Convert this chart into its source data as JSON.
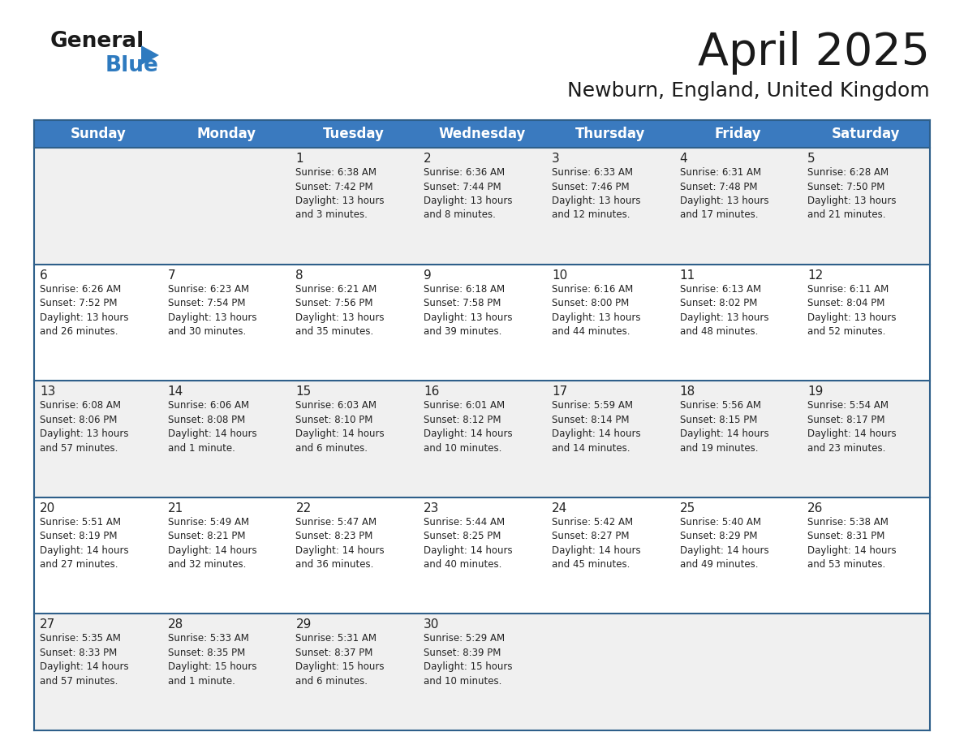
{
  "title": "April 2025",
  "subtitle": "Newburn, England, United Kingdom",
  "header_bg": "#3a7abf",
  "header_text": "#ffffff",
  "row_bg_odd": "#f0f0f0",
  "row_bg_even": "#ffffff",
  "separator_color": "#2e5f8a",
  "day_names": [
    "Sunday",
    "Monday",
    "Tuesday",
    "Wednesday",
    "Thursday",
    "Friday",
    "Saturday"
  ],
  "cell_text_color": "#222222",
  "day_number_color": "#222222",
  "calendar": [
    [
      {
        "day": "",
        "info": ""
      },
      {
        "day": "",
        "info": ""
      },
      {
        "day": "1",
        "info": "Sunrise: 6:38 AM\nSunset: 7:42 PM\nDaylight: 13 hours\nand 3 minutes."
      },
      {
        "day": "2",
        "info": "Sunrise: 6:36 AM\nSunset: 7:44 PM\nDaylight: 13 hours\nand 8 minutes."
      },
      {
        "day": "3",
        "info": "Sunrise: 6:33 AM\nSunset: 7:46 PM\nDaylight: 13 hours\nand 12 minutes."
      },
      {
        "day": "4",
        "info": "Sunrise: 6:31 AM\nSunset: 7:48 PM\nDaylight: 13 hours\nand 17 minutes."
      },
      {
        "day": "5",
        "info": "Sunrise: 6:28 AM\nSunset: 7:50 PM\nDaylight: 13 hours\nand 21 minutes."
      }
    ],
    [
      {
        "day": "6",
        "info": "Sunrise: 6:26 AM\nSunset: 7:52 PM\nDaylight: 13 hours\nand 26 minutes."
      },
      {
        "day": "7",
        "info": "Sunrise: 6:23 AM\nSunset: 7:54 PM\nDaylight: 13 hours\nand 30 minutes."
      },
      {
        "day": "8",
        "info": "Sunrise: 6:21 AM\nSunset: 7:56 PM\nDaylight: 13 hours\nand 35 minutes."
      },
      {
        "day": "9",
        "info": "Sunrise: 6:18 AM\nSunset: 7:58 PM\nDaylight: 13 hours\nand 39 minutes."
      },
      {
        "day": "10",
        "info": "Sunrise: 6:16 AM\nSunset: 8:00 PM\nDaylight: 13 hours\nand 44 minutes."
      },
      {
        "day": "11",
        "info": "Sunrise: 6:13 AM\nSunset: 8:02 PM\nDaylight: 13 hours\nand 48 minutes."
      },
      {
        "day": "12",
        "info": "Sunrise: 6:11 AM\nSunset: 8:04 PM\nDaylight: 13 hours\nand 52 minutes."
      }
    ],
    [
      {
        "day": "13",
        "info": "Sunrise: 6:08 AM\nSunset: 8:06 PM\nDaylight: 13 hours\nand 57 minutes."
      },
      {
        "day": "14",
        "info": "Sunrise: 6:06 AM\nSunset: 8:08 PM\nDaylight: 14 hours\nand 1 minute."
      },
      {
        "day": "15",
        "info": "Sunrise: 6:03 AM\nSunset: 8:10 PM\nDaylight: 14 hours\nand 6 minutes."
      },
      {
        "day": "16",
        "info": "Sunrise: 6:01 AM\nSunset: 8:12 PM\nDaylight: 14 hours\nand 10 minutes."
      },
      {
        "day": "17",
        "info": "Sunrise: 5:59 AM\nSunset: 8:14 PM\nDaylight: 14 hours\nand 14 minutes."
      },
      {
        "day": "18",
        "info": "Sunrise: 5:56 AM\nSunset: 8:15 PM\nDaylight: 14 hours\nand 19 minutes."
      },
      {
        "day": "19",
        "info": "Sunrise: 5:54 AM\nSunset: 8:17 PM\nDaylight: 14 hours\nand 23 minutes."
      }
    ],
    [
      {
        "day": "20",
        "info": "Sunrise: 5:51 AM\nSunset: 8:19 PM\nDaylight: 14 hours\nand 27 minutes."
      },
      {
        "day": "21",
        "info": "Sunrise: 5:49 AM\nSunset: 8:21 PM\nDaylight: 14 hours\nand 32 minutes."
      },
      {
        "day": "22",
        "info": "Sunrise: 5:47 AM\nSunset: 8:23 PM\nDaylight: 14 hours\nand 36 minutes."
      },
      {
        "day": "23",
        "info": "Sunrise: 5:44 AM\nSunset: 8:25 PM\nDaylight: 14 hours\nand 40 minutes."
      },
      {
        "day": "24",
        "info": "Sunrise: 5:42 AM\nSunset: 8:27 PM\nDaylight: 14 hours\nand 45 minutes."
      },
      {
        "day": "25",
        "info": "Sunrise: 5:40 AM\nSunset: 8:29 PM\nDaylight: 14 hours\nand 49 minutes."
      },
      {
        "day": "26",
        "info": "Sunrise: 5:38 AM\nSunset: 8:31 PM\nDaylight: 14 hours\nand 53 minutes."
      }
    ],
    [
      {
        "day": "27",
        "info": "Sunrise: 5:35 AM\nSunset: 8:33 PM\nDaylight: 14 hours\nand 57 minutes."
      },
      {
        "day": "28",
        "info": "Sunrise: 5:33 AM\nSunset: 8:35 PM\nDaylight: 15 hours\nand 1 minute."
      },
      {
        "day": "29",
        "info": "Sunrise: 5:31 AM\nSunset: 8:37 PM\nDaylight: 15 hours\nand 6 minutes."
      },
      {
        "day": "30",
        "info": "Sunrise: 5:29 AM\nSunset: 8:39 PM\nDaylight: 15 hours\nand 10 minutes."
      },
      {
        "day": "",
        "info": ""
      },
      {
        "day": "",
        "info": ""
      },
      {
        "day": "",
        "info": ""
      }
    ]
  ]
}
